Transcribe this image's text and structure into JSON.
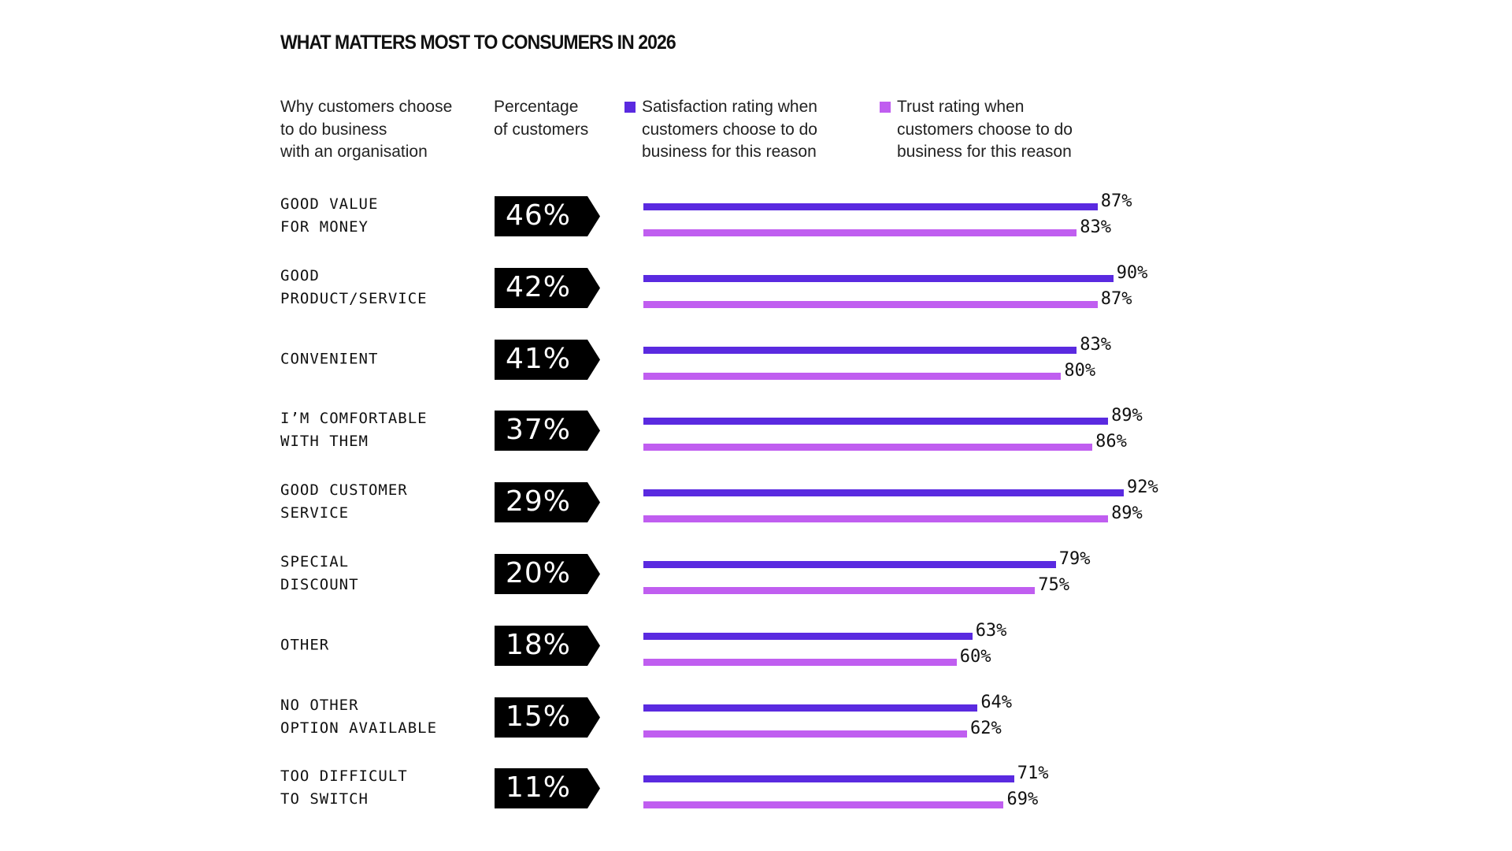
{
  "colors": {
    "satisfaction": "#5a2ae0",
    "trust": "#c05ef0",
    "badge": "#000000"
  },
  "chart_data": {
    "type": "bar",
    "title": "WHAT MATTERS MOST TO CONSUMERS IN 2026",
    "column_headers": {
      "reason": "Why customers choose\nto do business\nwith an organisation",
      "percentage": "Percentage\nof customers"
    },
    "legend": [
      {
        "name": "Satisfaction rating when\ncustomers choose to do\nbusiness for this reason"
      },
      {
        "name": "Trust rating when\ncustomers choose to do\nbusiness for this reason"
      }
    ],
    "categories": [
      "GOOD VALUE\nFOR MONEY",
      "GOOD\nPRODUCT/SERVICE",
      "CONVENIENT",
      "I’M COMFORTABLE\nWITH THEM",
      "GOOD CUSTOMER\nSERVICE",
      "SPECIAL\nDISCOUNT",
      "OTHER",
      "NO OTHER\nOPTION AVAILABLE",
      "TOO DIFFICULT\nTO SWITCH"
    ],
    "percentage_of_customers": [
      "46%",
      "42%",
      "41%",
      "37%",
      "29%",
      "20%",
      "18%",
      "15%",
      "11%"
    ],
    "series": [
      {
        "name": "Satisfaction",
        "values": [
          87,
          90,
          83,
          89,
          92,
          79,
          63,
          64,
          71
        ],
        "labels": [
          "87%",
          "90%",
          "83%",
          "89%",
          "92%",
          "79%",
          "63%",
          "64%",
          "71%"
        ]
      },
      {
        "name": "Trust",
        "values": [
          83,
          87,
          80,
          86,
          89,
          75,
          60,
          62,
          69
        ],
        "labels": [
          "83%",
          "87%",
          "80%",
          "86%",
          "89%",
          "75%",
          "60%",
          "62%",
          "69%"
        ]
      }
    ],
    "xlim": [
      0,
      100
    ]
  }
}
